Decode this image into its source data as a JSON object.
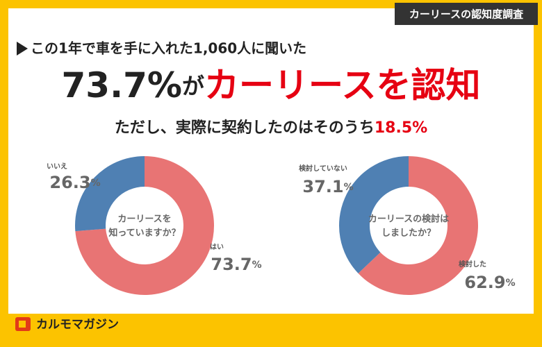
{
  "tag": "カーリースの認知度調査",
  "lead": "この1年で車を手に入れた1,060人に聞いた",
  "headline": {
    "number": "73.7%",
    "particle": "が",
    "emphasis": "カーリースを認知"
  },
  "sub": {
    "text": "ただし、実際に契約したのはそのうち",
    "emphasis": "18.5%"
  },
  "logo": "カルモマガジン",
  "chart_data": [
    {
      "type": "pie",
      "title": [
        "カーリースを",
        "知っていますか？"
      ],
      "categories": [
        "はい",
        "いいえ"
      ],
      "values": [
        73.7,
        26.3
      ],
      "value_labels": [
        "73.7%",
        "26.3%"
      ],
      "colors": [
        "#e87474",
        "#4f80b3"
      ]
    },
    {
      "type": "pie",
      "title": [
        "カーリースの検討は",
        "しましたか？"
      ],
      "categories": [
        "検討した",
        "検討していない"
      ],
      "values": [
        62.9,
        37.1
      ],
      "value_labels": [
        "62.9%",
        "37.1%"
      ],
      "colors": [
        "#e87474",
        "#4f80b3"
      ]
    }
  ]
}
